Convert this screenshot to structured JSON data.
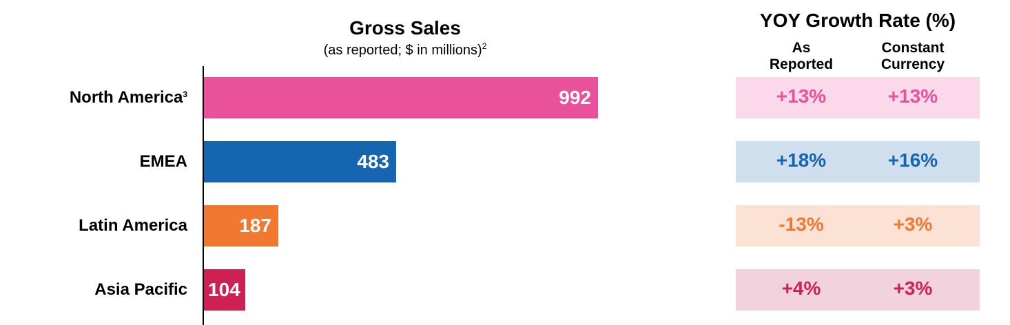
{
  "chart_data": {
    "type": "bar",
    "orientation": "horizontal",
    "title": "Gross Sales",
    "subtitle": "(as reported; $ in millions)",
    "subtitle_footnote": "2",
    "categories": [
      "North America",
      "EMEA",
      "Latin America",
      "Asia Pacific"
    ],
    "category_footnotes": [
      "3",
      "",
      "",
      ""
    ],
    "values": [
      992,
      483,
      187,
      104
    ],
    "value_labels": [
      "992",
      "483",
      "187",
      "104"
    ],
    "colors": [
      "#E9519A",
      "#1565B0",
      "#F07830",
      "#CC2152"
    ],
    "xlim": [
      0,
      992
    ]
  },
  "growth_table": {
    "title": "YOY Growth Rate (%)",
    "columns": [
      {
        "line1": "As",
        "line2": "Reported"
      },
      {
        "line1": "Constant",
        "line2": "Currency"
      }
    ],
    "rows": [
      {
        "as_reported": "+13%",
        "constant_currency": "+13%",
        "text_color": "#E9519A",
        "bg_color": "#FBD9EA"
      },
      {
        "as_reported": "+18%",
        "constant_currency": "+16%",
        "text_color": "#1565B0",
        "bg_color": "#D0DFEE"
      },
      {
        "as_reported": "-13%",
        "constant_currency": "+3%",
        "text_color": "#F07830",
        "bg_color": "#FCE2D5"
      },
      {
        "as_reported": "+4%",
        "constant_currency": "+3%",
        "text_color": "#CC2152",
        "bg_color": "#F2D3DD"
      }
    ]
  }
}
